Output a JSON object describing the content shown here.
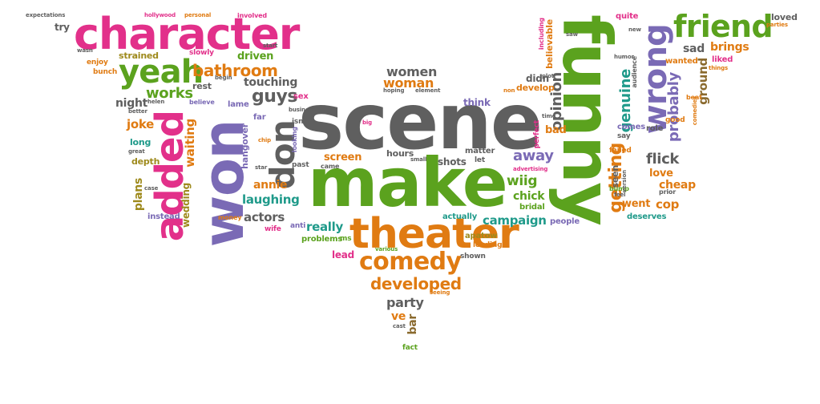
{
  "palette": {
    "gray": "#5f5f5f",
    "green": "#5ba21e",
    "pink": "#e2308a",
    "orange": "#e07b12",
    "purple": "#7a6ab5",
    "teal": "#1f9a8a",
    "olive": "#9e8a1c",
    "brown": "#8a6a2e"
  },
  "words": [
    {
      "text": "scene"
    },
    {
      "text": "make"
    },
    {
      "text": "funny"
    },
    {
      "text": "won"
    },
    {
      "text": "character"
    },
    {
      "text": "theater"
    },
    {
      "text": "added"
    },
    {
      "text": "yeah"
    },
    {
      "text": "wrong"
    },
    {
      "text": "friend"
    },
    {
      "text": "comedy"
    },
    {
      "text": "don"
    },
    {
      "text": "developed"
    },
    {
      "text": "bathroom"
    },
    {
      "text": "getting"
    },
    {
      "text": "genuine"
    },
    {
      "text": "opinion"
    },
    {
      "text": "probably"
    },
    {
      "text": "guys"
    },
    {
      "text": "women"
    },
    {
      "text": "woman"
    },
    {
      "text": "works"
    },
    {
      "text": "joke"
    },
    {
      "text": "waiting"
    },
    {
      "text": "night"
    },
    {
      "text": "touching"
    },
    {
      "text": "driven"
    },
    {
      "text": "strained"
    },
    {
      "text": "try"
    },
    {
      "text": "slowly"
    },
    {
      "text": "enjoy"
    },
    {
      "text": "bunch"
    },
    {
      "text": "rest"
    },
    {
      "text": "believe"
    },
    {
      "text": "lame"
    },
    {
      "text": "far"
    },
    {
      "text": "isn"
    },
    {
      "text": "sex"
    },
    {
      "text": "hangover"
    },
    {
      "text": "annie"
    },
    {
      "text": "laughing"
    },
    {
      "text": "actors"
    },
    {
      "text": "really"
    },
    {
      "text": "campaign"
    },
    {
      "text": "screen"
    },
    {
      "text": "hours"
    },
    {
      "text": "shots"
    },
    {
      "text": "away"
    },
    {
      "text": "wiig"
    },
    {
      "text": "chick"
    },
    {
      "text": "bridal"
    },
    {
      "text": "bad"
    },
    {
      "text": "think"
    },
    {
      "text": "didn"
    },
    {
      "text": "develop"
    },
    {
      "text": "matter"
    },
    {
      "text": "let"
    },
    {
      "text": "people"
    },
    {
      "text": "actually"
    },
    {
      "text": "apatow"
    },
    {
      "text": "leading"
    },
    {
      "text": "shown"
    },
    {
      "text": "lead"
    },
    {
      "text": "problems"
    },
    {
      "text": "ms"
    },
    {
      "text": "anti"
    },
    {
      "text": "wife"
    },
    {
      "text": "money"
    },
    {
      "text": "plans"
    },
    {
      "text": "instead"
    },
    {
      "text": "wedding"
    },
    {
      "text": "depth"
    },
    {
      "text": "long"
    },
    {
      "text": "great"
    },
    {
      "text": "party"
    },
    {
      "text": "ve"
    },
    {
      "text": "bar"
    },
    {
      "text": "fact"
    },
    {
      "text": "cast"
    },
    {
      "text": "seeing"
    },
    {
      "text": "sad"
    },
    {
      "text": "brings"
    },
    {
      "text": "liked"
    },
    {
      "text": "wanted"
    },
    {
      "text": "ground"
    },
    {
      "text": "flick"
    },
    {
      "text": "love"
    },
    {
      "text": "cheap"
    },
    {
      "text": "went"
    },
    {
      "text": "cop"
    },
    {
      "text": "deserves"
    },
    {
      "text": "role"
    },
    {
      "text": "good"
    },
    {
      "text": "comes"
    },
    {
      "text": "say"
    },
    {
      "text": "seen"
    },
    {
      "text": "failed"
    },
    {
      "text": "bump"
    },
    {
      "text": "believable"
    },
    {
      "text": "including"
    },
    {
      "text": "saw"
    },
    {
      "text": "perfect"
    },
    {
      "text": "quite"
    },
    {
      "text": "new"
    },
    {
      "text": "loved"
    },
    {
      "text": "parties"
    },
    {
      "text": "expectations"
    },
    {
      "text": "hollywood"
    },
    {
      "text": "personal"
    },
    {
      "text": "involved"
    },
    {
      "text": "start"
    },
    {
      "text": "wasn"
    },
    {
      "text": "business"
    },
    {
      "text": "better"
    },
    {
      "text": "helen"
    },
    {
      "text": "begin"
    },
    {
      "text": "star"
    },
    {
      "text": "came"
    },
    {
      "text": "past"
    },
    {
      "text": "small"
    },
    {
      "text": "advertising"
    },
    {
      "text": "humor"
    },
    {
      "text": "audience"
    },
    {
      "text": "comedies"
    },
    {
      "text": "beat"
    },
    {
      "text": "things"
    },
    {
      "text": "prior"
    },
    {
      "text": "version"
    },
    {
      "text": "feel"
    },
    {
      "text": "time"
    },
    {
      "text": "plot"
    },
    {
      "text": "non"
    },
    {
      "text": "hoping"
    },
    {
      "text": "element"
    },
    {
      "text": "big"
    },
    {
      "text": "looking"
    },
    {
      "text": "chip"
    },
    {
      "text": "case"
    },
    {
      "text": "various"
    },
    {
      "text": "make"
    },
    {
      "text": "reason"
    }
  ]
}
